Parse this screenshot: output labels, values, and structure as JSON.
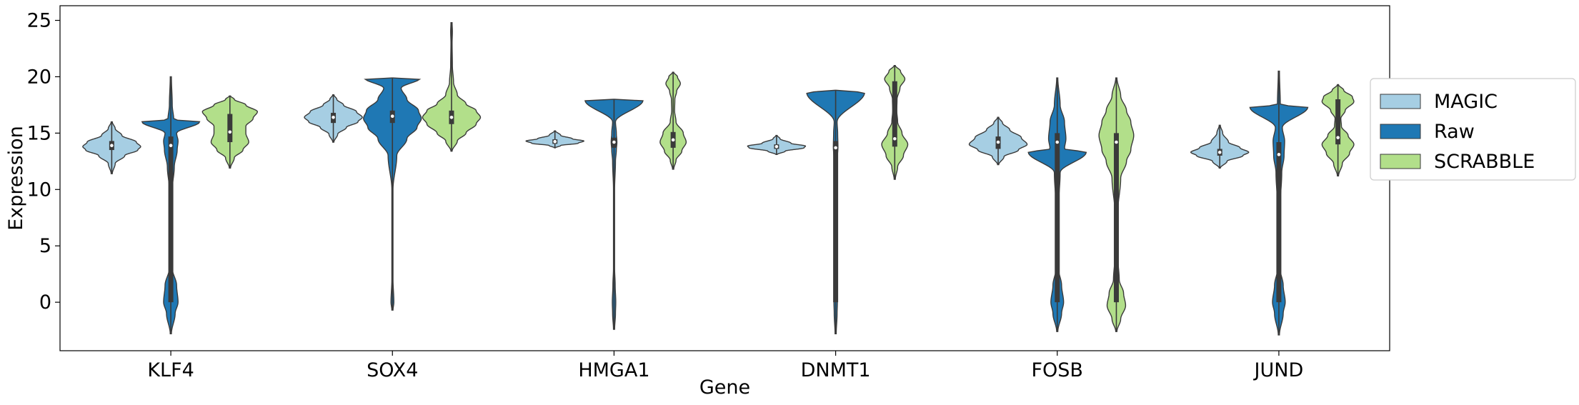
{
  "chart_data": {
    "type": "violin",
    "xlabel": "Gene",
    "ylabel": "Expression",
    "categories": [
      "KLF4",
      "SOX4",
      "HMGA1",
      "DNMT1",
      "FOSB",
      "JUND"
    ],
    "ylim": [
      -4.3,
      26.3
    ],
    "yticks": [
      0,
      5,
      10,
      15,
      20,
      25
    ],
    "grid": false,
    "legend_position": "right-outside",
    "series": [
      {
        "name": "MAGIC",
        "color": "#a6cee3",
        "violins": [
          {
            "min": 11.4,
            "max": 16.0,
            "profile": [
              [
                11.4,
                0.02
              ],
              [
                12.3,
                0.12
              ],
              [
                13.0,
                0.45
              ],
              [
                13.5,
                0.9
              ],
              [
                13.8,
                1.0
              ],
              [
                14.2,
                0.85
              ],
              [
                14.8,
                0.35
              ],
              [
                15.4,
                0.12
              ],
              [
                16.0,
                0.02
              ]
            ],
            "q1": 13.5,
            "median": 13.9,
            "q3": 14.3
          },
          {
            "min": 14.2,
            "max": 18.4,
            "profile": [
              [
                14.2,
                0.02
              ],
              [
                14.9,
                0.15
              ],
              [
                15.5,
                0.45
              ],
              [
                16.0,
                0.85
              ],
              [
                16.4,
                1.0
              ],
              [
                16.9,
                0.8
              ],
              [
                17.5,
                0.35
              ],
              [
                18.0,
                0.12
              ],
              [
                18.4,
                0.02
              ]
            ],
            "q1": 15.9,
            "median": 16.4,
            "q3": 16.8
          },
          {
            "min": 13.7,
            "max": 15.2,
            "profile": [
              [
                13.7,
                0.02
              ],
              [
                13.9,
                0.2
              ],
              [
                14.1,
                0.8
              ],
              [
                14.3,
                1.0
              ],
              [
                14.5,
                0.6
              ],
              [
                14.8,
                0.2
              ],
              [
                15.2,
                0.02
              ]
            ],
            "q1": 14.05,
            "median": 14.25,
            "q3": 14.45
          },
          {
            "min": 13.1,
            "max": 14.8,
            "profile": [
              [
                13.1,
                0.02
              ],
              [
                13.4,
                0.3
              ],
              [
                13.7,
                0.95
              ],
              [
                13.85,
                1.0
              ],
              [
                14.1,
                0.5
              ],
              [
                14.5,
                0.12
              ],
              [
                14.8,
                0.02
              ]
            ],
            "q1": 13.6,
            "median": 13.8,
            "q3": 14.0
          },
          {
            "min": 12.2,
            "max": 16.4,
            "profile": [
              [
                12.2,
                0.02
              ],
              [
                12.9,
                0.2
              ],
              [
                13.5,
                0.7
              ],
              [
                14.0,
                1.0
              ],
              [
                14.6,
                0.8
              ],
              [
                15.3,
                0.4
              ],
              [
                15.9,
                0.15
              ],
              [
                16.4,
                0.02
              ]
            ],
            "q1": 13.6,
            "median": 14.2,
            "q3": 14.7
          },
          {
            "min": 11.9,
            "max": 15.7,
            "profile": [
              [
                11.9,
                0.02
              ],
              [
                12.5,
                0.25
              ],
              [
                13.0,
                0.8
              ],
              [
                13.3,
                1.0
              ],
              [
                13.7,
                0.7
              ],
              [
                14.2,
                0.3
              ],
              [
                15.0,
                0.1
              ],
              [
                15.7,
                0.02
              ]
            ],
            "q1": 13.0,
            "median": 13.3,
            "q3": 13.6
          }
        ]
      },
      {
        "name": "Raw",
        "color": "#1f78b4",
        "violins": [
          {
            "min": -2.8,
            "max": 20.0,
            "profile": [
              [
                -2.8,
                0.02
              ],
              [
                -1.0,
                0.15
              ],
              [
                0.0,
                0.25
              ],
              [
                1.5,
                0.2
              ],
              [
                3.0,
                0.05
              ],
              [
                6.0,
                0.04
              ],
              [
                10.0,
                0.05
              ],
              [
                12.0,
                0.12
              ],
              [
                13.5,
                0.22
              ],
              [
                14.3,
                0.25
              ],
              [
                15.0,
                0.2
              ],
              [
                16.0,
                1.0
              ],
              [
                16.2,
                0.1
              ],
              [
                17.5,
                0.05
              ],
              [
                20.0,
                0.02
              ]
            ],
            "q1": 0.0,
            "median": 13.9,
            "q3": 14.7
          },
          {
            "min": -0.7,
            "max": 19.9,
            "profile": [
              [
                -0.7,
                0.02
              ],
              [
                0.0,
                0.05
              ],
              [
                2.0,
                0.02
              ],
              [
                10.0,
                0.02
              ],
              [
                13.0,
                0.15
              ],
              [
                14.5,
                0.5
              ],
              [
                15.5,
                0.85
              ],
              [
                16.3,
                1.0
              ],
              [
                17.0,
                0.9
              ],
              [
                18.0,
                0.5
              ],
              [
                19.0,
                0.3
              ],
              [
                19.85,
                0.95
              ],
              [
                19.9,
                0.02
              ]
            ],
            "q1": 15.9,
            "median": 16.5,
            "q3": 17.0
          },
          {
            "min": -2.4,
            "max": 18.0,
            "profile": [
              [
                -2.4,
                0.02
              ],
              [
                -1.0,
                0.05
              ],
              [
                0.0,
                0.06
              ],
              [
                1.5,
                0.04
              ],
              [
                3.0,
                0.02
              ],
              [
                10.0,
                0.02
              ],
              [
                12.5,
                0.05
              ],
              [
                13.5,
                0.08
              ],
              [
                14.2,
                0.1
              ],
              [
                15.0,
                0.08
              ],
              [
                16.0,
                0.05
              ],
              [
                17.9,
                1.0
              ],
              [
                18.0,
                0.02
              ]
            ],
            "q1": 13.7,
            "median": 14.2,
            "q3": 14.6
          },
          {
            "min": -2.8,
            "max": 18.8,
            "profile": [
              [
                -2.8,
                0.02
              ],
              [
                -1.0,
                0.05
              ],
              [
                0.0,
                0.06
              ],
              [
                1.5,
                0.04
              ],
              [
                3.0,
                0.03
              ],
              [
                10.0,
                0.03
              ],
              [
                12.5,
                0.05
              ],
              [
                13.8,
                0.08
              ],
              [
                15.0,
                0.07
              ],
              [
                16.0,
                0.05
              ],
              [
                18.6,
                1.0
              ],
              [
                18.8,
                0.02
              ]
            ],
            "q1": 0.0,
            "median": 13.7,
            "q3": 14.3
          },
          {
            "min": -2.6,
            "max": 19.9,
            "profile": [
              [
                -2.6,
                0.02
              ],
              [
                -1.0,
                0.15
              ],
              [
                0.0,
                0.22
              ],
              [
                1.5,
                0.15
              ],
              [
                3.0,
                0.04
              ],
              [
                8.0,
                0.03
              ],
              [
                11.5,
                0.1
              ],
              [
                13.3,
                1.0
              ],
              [
                13.6,
                0.25
              ],
              [
                14.5,
                0.3
              ],
              [
                16.0,
                0.25
              ],
              [
                17.5,
                0.1
              ],
              [
                19.9,
                0.02
              ]
            ],
            "q1": 0.0,
            "median": 14.2,
            "q3": 15.0
          },
          {
            "min": -2.9,
            "max": 20.5,
            "profile": [
              [
                -2.9,
                0.02
              ],
              [
                -1.0,
                0.15
              ],
              [
                0.0,
                0.22
              ],
              [
                1.5,
                0.15
              ],
              [
                3.0,
                0.04
              ],
              [
                8.0,
                0.03
              ],
              [
                11.5,
                0.1
              ],
              [
                13.0,
                0.18
              ],
              [
                14.3,
                0.2
              ],
              [
                15.5,
                0.12
              ],
              [
                17.3,
                1.0
              ],
              [
                17.5,
                0.05
              ],
              [
                20.5,
                0.02
              ]
            ],
            "q1": 0.0,
            "median": 13.1,
            "q3": 14.2
          }
        ]
      },
      {
        "name": "SCRABBLE",
        "color": "#b2df8a",
        "violins": [
          {
            "min": 11.9,
            "max": 18.3,
            "profile": [
              [
                11.9,
                0.02
              ],
              [
                12.8,
                0.15
              ],
              [
                13.5,
                0.45
              ],
              [
                14.2,
                0.65
              ],
              [
                15.0,
                0.55
              ],
              [
                15.6,
                0.55
              ],
              [
                16.3,
                0.8
              ],
              [
                16.9,
                0.95
              ],
              [
                17.5,
                0.55
              ],
              [
                18.0,
                0.15
              ],
              [
                18.3,
                0.02
              ]
            ],
            "q1": 14.2,
            "median": 15.1,
            "q3": 16.7
          },
          {
            "min": 13.4,
            "max": 24.8,
            "profile": [
              [
                13.4,
                0.02
              ],
              [
                14.3,
                0.2
              ],
              [
                15.0,
                0.5
              ],
              [
                15.8,
                0.85
              ],
              [
                16.4,
                1.0
              ],
              [
                17.0,
                0.85
              ],
              [
                17.6,
                0.5
              ],
              [
                18.4,
                0.2
              ],
              [
                19.5,
                0.07
              ],
              [
                21.0,
                0.03
              ],
              [
                23.0,
                0.02
              ],
              [
                24.0,
                0.03
              ],
              [
                24.8,
                0.02
              ]
            ],
            "q1": 15.8,
            "median": 16.4,
            "q3": 17.0
          },
          {
            "min": 11.8,
            "max": 20.4,
            "profile": [
              [
                11.8,
                0.02
              ],
              [
                12.6,
                0.1
              ],
              [
                13.4,
                0.3
              ],
              [
                14.2,
                0.45
              ],
              [
                15.0,
                0.35
              ],
              [
                16.0,
                0.1
              ],
              [
                17.0,
                0.05
              ],
              [
                18.0,
                0.06
              ],
              [
                18.7,
                0.12
              ],
              [
                19.4,
                0.25
              ],
              [
                20.0,
                0.15
              ],
              [
                20.4,
                0.02
              ]
            ],
            "q1": 13.7,
            "median": 14.4,
            "q3": 15.1
          },
          {
            "min": 10.9,
            "max": 21.0,
            "profile": [
              [
                10.9,
                0.02
              ],
              [
                12.0,
                0.1
              ],
              [
                13.0,
                0.3
              ],
              [
                14.0,
                0.45
              ],
              [
                15.0,
                0.25
              ],
              [
                16.0,
                0.1
              ],
              [
                17.0,
                0.07
              ],
              [
                18.0,
                0.08
              ],
              [
                19.0,
                0.18
              ],
              [
                19.8,
                0.35
              ],
              [
                20.5,
                0.2
              ],
              [
                21.0,
                0.02
              ]
            ],
            "q1": 13.8,
            "median": 14.5,
            "q3": 19.6
          },
          {
            "min": -2.6,
            "max": 19.9,
            "profile": [
              [
                -2.6,
                0.02
              ],
              [
                -1.5,
                0.15
              ],
              [
                -0.3,
                0.32
              ],
              [
                0.8,
                0.25
              ],
              [
                2.0,
                0.1
              ],
              [
                4.0,
                0.05
              ],
              [
                8.0,
                0.05
              ],
              [
                11.0,
                0.15
              ],
              [
                12.5,
                0.35
              ],
              [
                13.5,
                0.5
              ],
              [
                14.8,
                0.6
              ],
              [
                16.0,
                0.5
              ],
              [
                17.0,
                0.35
              ],
              [
                18.3,
                0.15
              ],
              [
                19.9,
                0.02
              ]
            ],
            "q1": 0.0,
            "median": 14.2,
            "q3": 15.0
          },
          {
            "min": 11.2,
            "max": 19.3,
            "profile": [
              [
                11.2,
                0.02
              ],
              [
                12.3,
                0.15
              ],
              [
                13.2,
                0.4
              ],
              [
                14.0,
                0.55
              ],
              [
                14.8,
                0.35
              ],
              [
                15.6,
                0.12
              ],
              [
                16.3,
                0.1
              ],
              [
                17.0,
                0.25
              ],
              [
                17.8,
                0.55
              ],
              [
                18.2,
                0.5
              ],
              [
                18.8,
                0.2
              ],
              [
                19.3,
                0.02
              ]
            ],
            "q1": 14.0,
            "median": 14.6,
            "q3": 18.0
          }
        ]
      }
    ]
  }
}
